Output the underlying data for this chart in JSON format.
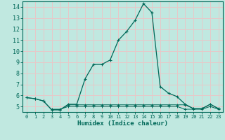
{
  "xlabel": "Humidex (Indice chaleur)",
  "background_color": "#c0e8e0",
  "grid_color": "#e8c8c8",
  "line_color": "#006858",
  "x_min": -0.5,
  "x_max": 23.5,
  "y_min": 4.5,
  "y_max": 14.5,
  "yticks": [
    5,
    6,
    7,
    8,
    9,
    10,
    11,
    12,
    13,
    14
  ],
  "xticks": [
    0,
    1,
    2,
    3,
    4,
    5,
    6,
    7,
    8,
    9,
    10,
    11,
    12,
    13,
    14,
    15,
    16,
    17,
    18,
    19,
    20,
    21,
    22,
    23
  ],
  "series": [
    {
      "x": [
        0,
        1,
        2,
        3,
        4,
        5,
        6,
        7,
        8,
        9,
        10,
        11,
        12,
        13,
        14,
        15,
        16,
        17,
        18,
        19,
        20,
        21,
        22,
        23
      ],
      "y": [
        5.8,
        5.7,
        5.5,
        4.7,
        4.7,
        5.2,
        5.2,
        7.5,
        8.8,
        8.8,
        9.2,
        11.0,
        11.8,
        12.8,
        14.3,
        13.5,
        6.8,
        6.2,
        5.9,
        5.2,
        4.8,
        4.8,
        5.2,
        4.8
      ]
    },
    {
      "x": [
        0,
        1,
        2,
        3,
        4,
        5,
        6,
        7,
        8,
        9,
        10,
        11,
        12,
        13,
        14,
        15,
        16,
        17,
        18,
        19,
        20,
        21,
        22,
        23
      ],
      "y": [
        5.8,
        5.7,
        5.5,
        4.7,
        4.7,
        5.15,
        5.15,
        5.15,
        5.15,
        5.15,
        5.15,
        5.15,
        5.15,
        5.15,
        5.15,
        5.15,
        5.15,
        5.15,
        5.15,
        5.15,
        4.8,
        4.8,
        5.2,
        4.8
      ]
    },
    {
      "x": [
        3,
        4,
        5,
        6,
        7,
        8,
        9,
        10,
        11,
        12,
        13,
        14,
        15,
        16,
        17,
        18,
        19,
        20,
        21,
        22,
        23
      ],
      "y": [
        4.75,
        4.75,
        5.0,
        5.0,
        5.0,
        5.0,
        5.0,
        5.0,
        5.0,
        5.0,
        5.0,
        5.0,
        5.0,
        5.0,
        5.0,
        5.0,
        4.75,
        4.75,
        4.75,
        5.0,
        4.75
      ]
    }
  ]
}
